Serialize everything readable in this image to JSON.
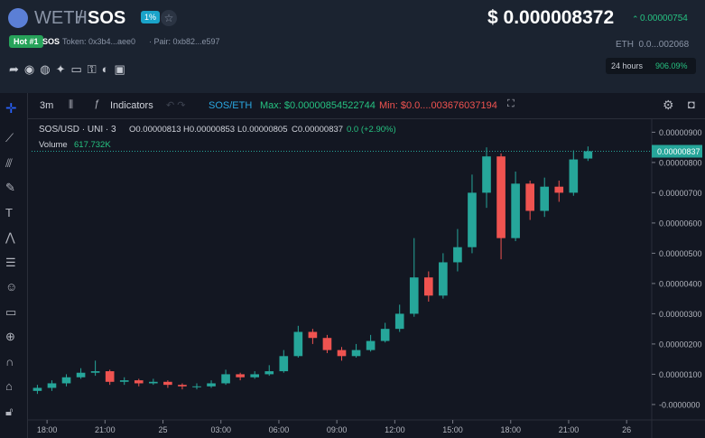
{
  "header": {
    "base": "WETH",
    "sep": "/",
    "quote": "SOS",
    "badge": "1%",
    "hot": "Hot #1",
    "symbol": "SOS",
    "token": "Token: 0x3b4...aee0",
    "pair": "· Pair: 0xb82...e597",
    "price": "$ 0.000008372",
    "change": "0.00000754",
    "eth": "ETH  0.0...002068",
    "period": "24 hours",
    "period_change": "906.09%"
  },
  "toolbar": {
    "interval": "3m",
    "indicators": "Indicators",
    "pair": "SOS/ETH",
    "max": "Max: $0.00000854522744",
    "min": "Min: $0.0....003676037194"
  },
  "chart_data": {
    "type": "candlestick",
    "symbol": "SOS/USD · UNI · 3",
    "legend": {
      "open": "O0.00000813",
      "high": "H0.00000853",
      "low": "L0.00000805",
      "close": "C0.00000837",
      "change": "0.0 (+2.90%)"
    },
    "volume_label": "Volume",
    "volume": "617.732K",
    "price_tag": "0.00000837",
    "up_color": "#26a69a",
    "down_color": "#ef5350",
    "x": [
      -0.5,
      0.25,
      1,
      1.75,
      2.5,
      3.25,
      4,
      4.75,
      5.5,
      6.25,
      7,
      7.75,
      8.5,
      9.25,
      10,
      10.75,
      11.5,
      12.25,
      13,
      13.75,
      14.5,
      15.25,
      16,
      16.75,
      17.5,
      18.25,
      19,
      19.75,
      20.5,
      21.25,
      22,
      22.75,
      23.5,
      24.25,
      25,
      25.75,
      26.5,
      27.25,
      28
    ],
    "open": [
      4.5e-07,
      5.5e-07,
      7e-07,
      9e-07,
      1.05e-06,
      1.1e-06,
      7.5e-07,
      8e-07,
      7e-07,
      7.5e-07,
      6.5e-07,
      6e-07,
      6e-07,
      7e-07,
      1e-06,
      9e-07,
      1e-06,
      1.1e-06,
      1.6e-06,
      2.4e-06,
      2.2e-06,
      1.8e-06,
      1.6e-06,
      1.8e-06,
      2.1e-06,
      2.5e-06,
      3e-06,
      4.2e-06,
      3.6e-06,
      4.7e-06,
      5.2e-06,
      7e-06,
      8.2e-06,
      5.5e-06,
      7.3e-06,
      6.4e-06,
      7.2e-06,
      7e-06,
      8.13e-06
    ],
    "high": [
      6.5e-07,
      8e-07,
      1e-06,
      1.2e-06,
      1.45e-06,
      1.15e-06,
      9e-07,
      8.5e-07,
      8.5e-07,
      8e-07,
      7e-07,
      7e-07,
      8e-07,
      1.15e-06,
      1.05e-06,
      1.1e-06,
      1.3e-06,
      1.8e-06,
      2.6e-06,
      2.5e-06,
      2.3e-06,
      1.9e-06,
      2e-06,
      2.3e-06,
      2.7e-06,
      3.3e-06,
      5.5e-06,
      4.4e-06,
      5e-06,
      5.8e-06,
      7.6e-06,
      8.5e-06,
      8.3e-06,
      7.7e-06,
      7.4e-06,
      7.5e-06,
      7.4e-06,
      8.4e-06,
      8.53e-06
    ],
    "low": [
      3.5e-07,
      4.5e-07,
      6e-07,
      8.5e-07,
      9.5e-07,
      6.5e-07,
      6.5e-07,
      6e-07,
      6.5e-07,
      5.5e-07,
      5e-07,
      5e-07,
      5.5e-07,
      6.5e-07,
      8e-07,
      8.5e-07,
      9.5e-07,
      1.05e-06,
      1.55e-06,
      2e-06,
      1.7e-06,
      1.45e-06,
      1.55e-06,
      1.75e-06,
      2.05e-06,
      2.4e-06,
      2.9e-06,
      3.4e-06,
      3.5e-06,
      4.4e-06,
      5e-06,
      6.5e-06,
      4.8e-06,
      5.4e-06,
      6.1e-06,
      6.2e-06,
      6.7e-06,
      6.9e-06,
      8.05e-06
    ],
    "close": [
      5.5e-07,
      7e-07,
      9e-07,
      1.05e-06,
      1.1e-06,
      7.5e-07,
      8e-07,
      7e-07,
      7.5e-07,
      6.5e-07,
      6e-07,
      6e-07,
      7e-07,
      1e-06,
      9e-07,
      1e-06,
      1.1e-06,
      1.6e-06,
      2.4e-06,
      2.2e-06,
      1.8e-06,
      1.6e-06,
      1.8e-06,
      2.1e-06,
      2.5e-06,
      3e-06,
      4.2e-06,
      3.6e-06,
      4.7e-06,
      5.2e-06,
      7e-06,
      8.2e-06,
      5.5e-06,
      7.3e-06,
      6.4e-06,
      7.2e-06,
      7e-06,
      8.1e-06,
      8.37e-06
    ],
    "xlim": [
      -0.8,
      31.3
    ],
    "ylim": [
      -5.1e-07,
      9.4e-06
    ],
    "xticks": [
      {
        "value": 0,
        "label": "18:00"
      },
      {
        "value": 3,
        "label": "21:00"
      },
      {
        "value": 6,
        "label": "25"
      },
      {
        "value": 9,
        "label": "03:00"
      },
      {
        "value": 12,
        "label": "06:00"
      },
      {
        "value": 15,
        "label": "09:00"
      },
      {
        "value": 18,
        "label": "12:00"
      },
      {
        "value": 21,
        "label": "15:00"
      },
      {
        "value": 24,
        "label": "18:00"
      },
      {
        "value": 27,
        "label": "21:00"
      },
      {
        "value": 30,
        "label": "26"
      }
    ],
    "yticks": [
      {
        "value": 9e-06,
        "label": "0.00000900"
      },
      {
        "value": 8e-06,
        "label": "0.00000800"
      },
      {
        "value": 7e-06,
        "label": "0.00000700"
      },
      {
        "value": 6e-06,
        "label": "0.00000600"
      },
      {
        "value": 5e-06,
        "label": "0.00000500"
      },
      {
        "value": 4e-06,
        "label": "0.00000400"
      },
      {
        "value": 3e-06,
        "label": "0.00000300"
      },
      {
        "value": 2e-06,
        "label": "0.00000200"
      },
      {
        "value": 1e-06,
        "label": "0.00000100"
      },
      {
        "value": 0,
        "label": "-0.0000000"
      }
    ],
    "grid": false
  }
}
